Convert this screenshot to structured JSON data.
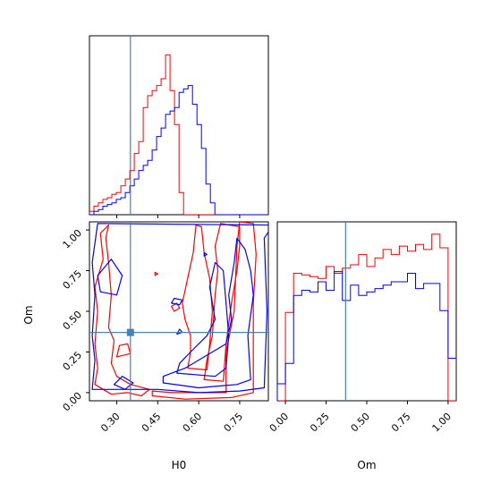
{
  "chart_data": {
    "type": "corner",
    "parameters": [
      "H0",
      "Om"
    ],
    "truth": {
      "H0": 0.35,
      "Om": 0.37
    },
    "colors": {
      "red": "#ff0000",
      "blue": "#0000ff",
      "truth": "#4682b4"
    },
    "x_labels": {
      "H0": "H0",
      "Om": "Om"
    },
    "y_labels": {
      "Om": "Om"
    },
    "ranges": {
      "H0": [
        0.2,
        0.855
      ],
      "Om": [
        -0.05,
        1.05
      ]
    },
    "h0_ticks": [
      "0.30",
      "0.45",
      "0.60",
      "0.75"
    ],
    "h0_tick_values": [
      0.3,
      0.45,
      0.6,
      0.75
    ],
    "om_ticks": [
      "0.00",
      "0.25",
      "0.50",
      "0.75",
      "1.00"
    ],
    "om_tick_values": [
      0.0,
      0.25,
      0.5,
      0.75,
      1.0
    ],
    "h0_hist": {
      "bin_start": 0.2,
      "bin_width": 0.0164,
      "series": [
        {
          "color": "red",
          "counts": [
            0.02,
            0.05,
            0.07,
            0.09,
            0.1,
            0.12,
            0.13,
            0.17,
            0.21,
            0.26,
            0.36,
            0.43,
            0.63,
            0.7,
            0.73,
            0.76,
            0.8,
            0.94,
            0.73,
            0.53,
            0.13,
            0.0,
            0.0,
            0.0,
            0.0,
            0.0,
            0.0,
            0.0,
            0.0,
            0.0,
            0.0,
            0.0,
            0.0,
            0.0,
            0.0,
            0.0,
            0.0,
            0.0,
            0.0,
            0.0
          ]
        },
        {
          "color": "blue",
          "counts": [
            0.0,
            0.02,
            0.03,
            0.05,
            0.06,
            0.07,
            0.09,
            0.1,
            0.13,
            0.17,
            0.21,
            0.26,
            0.29,
            0.32,
            0.38,
            0.46,
            0.51,
            0.59,
            0.61,
            0.63,
            0.72,
            0.74,
            0.76,
            0.65,
            0.53,
            0.39,
            0.18,
            0.07,
            0.0,
            0.0,
            0.0,
            0.0,
            0.0,
            0.0,
            0.0,
            0.0,
            0.0,
            0.0,
            0.0,
            0.0
          ]
        }
      ]
    },
    "om_hist": {
      "bin_start": -0.05,
      "bin_width": 0.05,
      "series": [
        {
          "color": "red",
          "counts": [
            0.0,
            0.52,
            0.75,
            0.74,
            0.73,
            0.72,
            0.79,
            0.75,
            0.78,
            0.8,
            0.86,
            0.79,
            0.84,
            0.89,
            0.86,
            0.91,
            0.88,
            0.92,
            0.89,
            0.98,
            0.9,
            0.0
          ]
        },
        {
          "color": "blue",
          "counts": [
            0.1,
            0.22,
            0.62,
            0.65,
            0.64,
            0.7,
            0.65,
            0.76,
            0.59,
            0.68,
            0.62,
            0.64,
            0.66,
            0.68,
            0.7,
            0.7,
            0.75,
            0.66,
            0.69,
            0.69,
            0.53,
            0.25
          ]
        }
      ]
    },
    "contours": [
      {
        "color": "red",
        "points": [
          [
            0.43,
            -0.02
          ],
          [
            0.55,
            -0.04
          ],
          [
            0.72,
            -0.03
          ],
          [
            0.8,
            0.0
          ],
          [
            0.8,
            0.55
          ],
          [
            0.81,
            0.85
          ],
          [
            0.8,
            1.04
          ],
          [
            0.75,
            1.05
          ],
          [
            0.74,
            0.9
          ],
          [
            0.73,
            0.5
          ],
          [
            0.7,
            0.25
          ],
          [
            0.7,
            0.0
          ],
          [
            0.6,
            0.0
          ],
          [
            0.5,
            0.0
          ],
          [
            0.43,
            0.01
          ]
        ]
      },
      {
        "color": "red",
        "points": [
          [
            0.62,
            0.08
          ],
          [
            0.69,
            0.07
          ],
          [
            0.7,
            0.3
          ],
          [
            0.72,
            0.55
          ],
          [
            0.74,
            0.75
          ],
          [
            0.75,
            0.9
          ],
          [
            0.75,
            1.02
          ],
          [
            0.68,
            1.04
          ],
          [
            0.66,
            0.9
          ],
          [
            0.67,
            0.75
          ],
          [
            0.66,
            0.6
          ],
          [
            0.65,
            0.35
          ],
          [
            0.63,
            0.2
          ]
        ]
      },
      {
        "color": "red",
        "points": [
          [
            0.56,
            0.15
          ],
          [
            0.63,
            0.14
          ],
          [
            0.64,
            0.3
          ],
          [
            0.65,
            0.5
          ],
          [
            0.64,
            0.7
          ],
          [
            0.62,
            0.86
          ],
          [
            0.61,
            1.02
          ],
          [
            0.59,
            1.03
          ],
          [
            0.58,
            0.86
          ],
          [
            0.54,
            0.55
          ],
          [
            0.55,
            0.45
          ],
          [
            0.57,
            0.35
          ],
          [
            0.57,
            0.25
          ]
        ]
      },
      {
        "color": "red",
        "points": [
          [
            0.22,
            0.05
          ],
          [
            0.28,
            -0.01
          ],
          [
            0.34,
            0.0
          ],
          [
            0.39,
            -0.02
          ],
          [
            0.42,
            0.02
          ],
          [
            0.35,
            0.05
          ],
          [
            0.3,
            0.1
          ],
          [
            0.28,
            0.18
          ],
          [
            0.29,
            0.32
          ],
          [
            0.27,
            0.4
          ],
          [
            0.28,
            0.6
          ],
          [
            0.27,
            0.8
          ],
          [
            0.26,
            0.95
          ],
          [
            0.27,
            1.03
          ],
          [
            0.24,
            0.98
          ],
          [
            0.25,
            0.82
          ],
          [
            0.22,
            0.65
          ],
          [
            0.23,
            0.5
          ],
          [
            0.22,
            0.3
          ],
          [
            0.23,
            0.15
          ]
        ]
      },
      {
        "color": "red",
        "points": [
          [
            0.3,
            0.22
          ],
          [
            0.35,
            0.24
          ],
          [
            0.34,
            0.3
          ],
          [
            0.31,
            0.29
          ]
        ]
      },
      {
        "color": "red",
        "points": [
          [
            0.44,
            0.72
          ],
          [
            0.45,
            0.73
          ],
          [
            0.44,
            0.74
          ]
        ]
      },
      {
        "color": "red",
        "points": [
          [
            0.51,
            0.5
          ],
          [
            0.53,
            0.52
          ],
          [
            0.52,
            0.55
          ],
          [
            0.5,
            0.53
          ]
        ]
      },
      {
        "color": "blue",
        "points": [
          [
            0.21,
            0.02
          ],
          [
            0.35,
            0.02
          ],
          [
            0.45,
            0.02
          ],
          [
            0.6,
            0.0
          ],
          [
            0.75,
            0.01
          ],
          [
            0.84,
            0.03
          ],
          [
            0.85,
            0.5
          ],
          [
            0.84,
            0.95
          ],
          [
            0.86,
            1.0
          ],
          [
            0.86,
            1.03
          ],
          [
            0.23,
            1.04
          ],
          [
            0.21,
            0.8
          ],
          [
            0.22,
            0.6
          ],
          [
            0.21,
            0.35
          ],
          [
            0.22,
            0.2
          ]
        ]
      },
      {
        "color": "blue",
        "points": [
          [
            0.47,
            0.06
          ],
          [
            0.6,
            0.03
          ],
          [
            0.74,
            0.05
          ],
          [
            0.79,
            0.08
          ],
          [
            0.78,
            0.35
          ],
          [
            0.8,
            0.6
          ],
          [
            0.79,
            0.75
          ],
          [
            0.77,
            0.88
          ],
          [
            0.74,
            0.95
          ],
          [
            0.73,
            0.8
          ],
          [
            0.71,
            0.6
          ],
          [
            0.72,
            0.45
          ],
          [
            0.7,
            0.3
          ],
          [
            0.55,
            0.15
          ],
          [
            0.47,
            0.1
          ]
        ]
      },
      {
        "color": "blue",
        "points": [
          [
            0.52,
            0.12
          ],
          [
            0.66,
            0.1
          ],
          [
            0.7,
            0.15
          ],
          [
            0.71,
            0.35
          ],
          [
            0.7,
            0.55
          ],
          [
            0.69,
            0.75
          ],
          [
            0.66,
            0.8
          ],
          [
            0.64,
            0.65
          ],
          [
            0.66,
            0.45
          ],
          [
            0.63,
            0.35
          ],
          [
            0.57,
            0.25
          ],
          [
            0.53,
            0.18
          ]
        ]
      },
      {
        "color": "blue",
        "points": [
          [
            0.24,
            0.62
          ],
          [
            0.3,
            0.6
          ],
          [
            0.32,
            0.72
          ],
          [
            0.28,
            0.82
          ],
          [
            0.23,
            0.72
          ]
        ]
      },
      {
        "color": "blue",
        "points": [
          [
            0.29,
            0.05
          ],
          [
            0.33,
            0.02
          ],
          [
            0.36,
            0.06
          ],
          [
            0.32,
            0.1
          ]
        ]
      },
      {
        "color": "blue",
        "points": [
          [
            0.5,
            0.55
          ],
          [
            0.53,
            0.54
          ],
          [
            0.54,
            0.57
          ],
          [
            0.51,
            0.58
          ]
        ]
      },
      {
        "color": "blue",
        "points": [
          [
            0.52,
            0.36
          ],
          [
            0.54,
            0.37
          ],
          [
            0.53,
            0.39
          ]
        ]
      },
      {
        "color": "blue",
        "points": [
          [
            0.62,
            0.84
          ],
          [
            0.63,
            0.85
          ],
          [
            0.62,
            0.86
          ]
        ]
      }
    ]
  }
}
